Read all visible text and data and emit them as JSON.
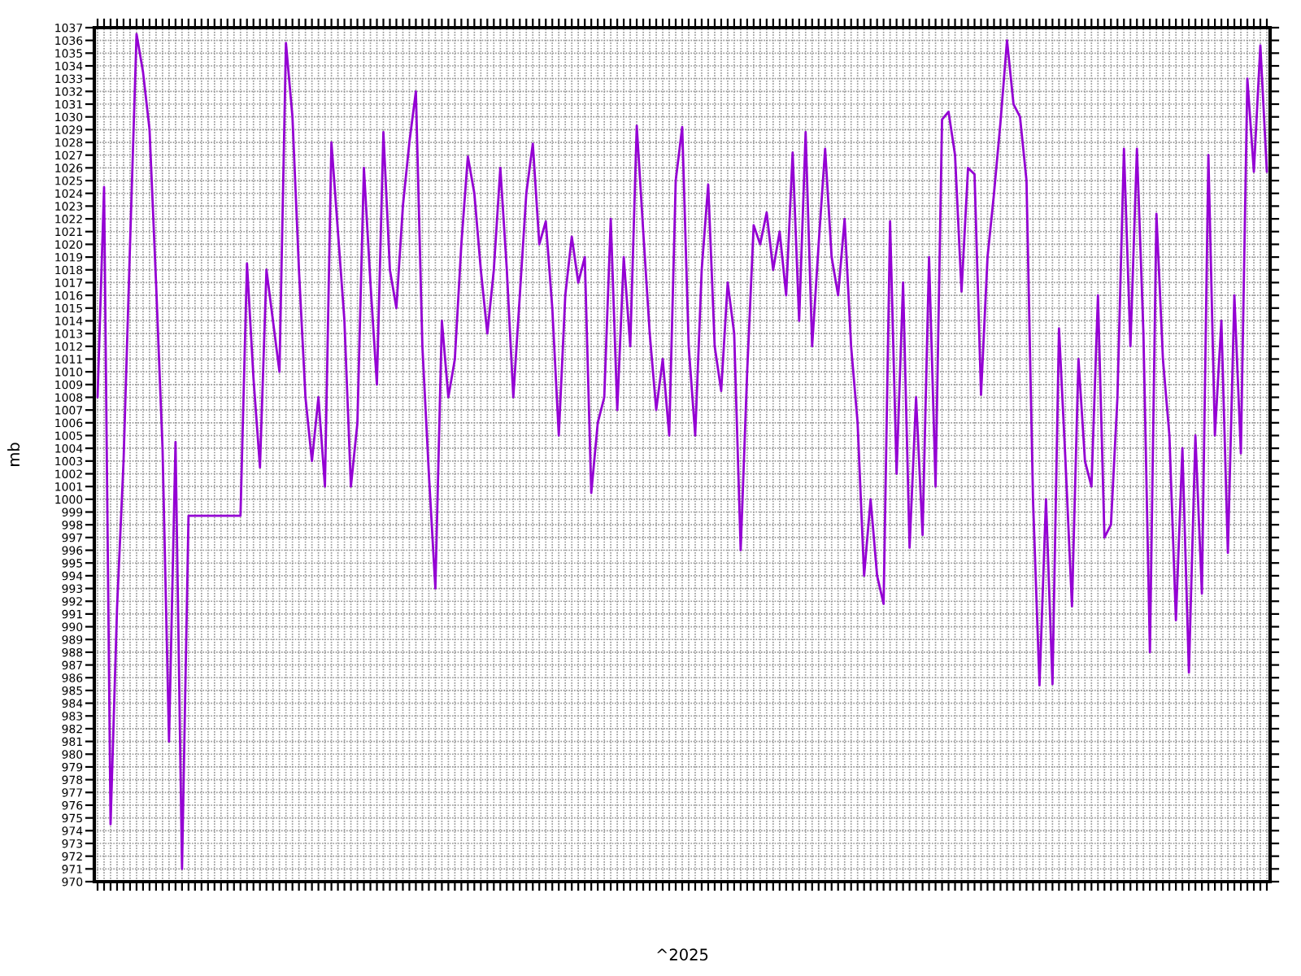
{
  "chart_data": {
    "type": "line",
    "xlabel": "^2025",
    "ylabel": "mb",
    "color": "#9400d3",
    "grid": true,
    "ylim": [
      970,
      1037
    ],
    "yticks": [
      970,
      971,
      972,
      973,
      974,
      975,
      976,
      977,
      978,
      979,
      980,
      981,
      982,
      983,
      984,
      985,
      986,
      987,
      988,
      989,
      990,
      991,
      992,
      993,
      994,
      995,
      996,
      997,
      998,
      999,
      1000,
      1001,
      1002,
      1003,
      1004,
      1005,
      1006,
      1007,
      1008,
      1009,
      1010,
      1011,
      1012,
      1013,
      1014,
      1015,
      1016,
      1017,
      1018,
      1019,
      1020,
      1021,
      1022,
      1023,
      1024,
      1025,
      1026,
      1027,
      1028,
      1029,
      1030,
      1031,
      1032,
      1033,
      1034,
      1035,
      1036,
      1037
    ],
    "categories": [
      null,
      null,
      null,
      null,
      null,
      null,
      null,
      null,
      null,
      null,
      null,
      null,
      null,
      null,
      null,
      null,
      null,
      null,
      null,
      null,
      null,
      null,
      null,
      null,
      null,
      null,
      null,
      null,
      null,
      null,
      null,
      null,
      null,
      null,
      null,
      null,
      null,
      null,
      null,
      null,
      null,
      null,
      null,
      null,
      null,
      null,
      null,
      null,
      null,
      null,
      null,
      null,
      null,
      null,
      null,
      null,
      null,
      null,
      null,
      null,
      null,
      null,
      null,
      null,
      null,
      null,
      null,
      null,
      null,
      null,
      null,
      null,
      null,
      null,
      null,
      null,
      null,
      null,
      null,
      null,
      null,
      null,
      null,
      null,
      null,
      null,
      null,
      null,
      null,
      null,
      null,
      null,
      null,
      null,
      null,
      null,
      null,
      null,
      null,
      null,
      null,
      null,
      null,
      null,
      null,
      null,
      null,
      null,
      null,
      null,
      null,
      null,
      null,
      null,
      null,
      null,
      null,
      null,
      null,
      null,
      null,
      null,
      null,
      null,
      null,
      null,
      null,
      null,
      null,
      null,
      null,
      null,
      null,
      null,
      null,
      null,
      null,
      null,
      null,
      null,
      null,
      null,
      null,
      null,
      null,
      null,
      null,
      null,
      null,
      null,
      null,
      null,
      null,
      null,
      null,
      null,
      null,
      null,
      null,
      null,
      null,
      null,
      null,
      null,
      null,
      null,
      null,
      null,
      null,
      null,
      null,
      null,
      null,
      null,
      null,
      null,
      null,
      null,
      null,
      null,
      null
    ],
    "values": [
      1008,
      1024.5,
      974.5,
      991.5,
      1003,
      1020,
      1036.5,
      1033.5,
      1029,
      1017,
      1004,
      981,
      1004.5,
      971,
      998.7,
      998.7,
      998.7,
      998.7,
      998.7,
      998.7,
      998.7,
      998.7,
      998.7,
      1018.5,
      1009.5,
      1002.5,
      1018,
      1014,
      1010,
      1035.8,
      1030,
      1018,
      1008,
      1003,
      1008,
      1001,
      1028,
      1021,
      1014,
      1001,
      1006,
      1026,
      1017,
      1009,
      1028.8,
      1018,
      1015,
      1023,
      1028,
      1032,
      1012,
      1002,
      993,
      1014,
      1008,
      1011,
      1020,
      1026.9,
      1024,
      1018,
      1013,
      1018,
      1026,
      1018,
      1008,
      1016,
      1024,
      1027.9,
      1020,
      1021.8,
      1015,
      1005,
      1016,
      1020.6,
      1017,
      1019,
      1000.5,
      1006,
      1008,
      1022,
      1007,
      1019,
      1012,
      1029.3,
      1021,
      1013,
      1007,
      1011,
      1005,
      1025,
      1029.2,
      1012,
      1005,
      1018,
      1024.7,
      1012,
      1008.5,
      1017,
      1013,
      996,
      1010,
      1021.5,
      1020,
      1022.5,
      1018,
      1021,
      1016,
      1027.2,
      1014,
      1028.8,
      1012,
      1020,
      1027.5,
      1019,
      1016,
      1022,
      1012,
      1006,
      994,
      1000,
      994,
      991.8,
      1021.8,
      1002,
      1017,
      996.2,
      1008,
      997.2,
      1019,
      1001,
      1029.8,
      1030.4,
      1027,
      1016.3,
      1026,
      1025.5,
      1008.2,
      1019,
      1024,
      1029.6,
      1036,
      1031,
      1030,
      1025,
      1000,
      985.4,
      1000,
      985.5,
      1013.4,
      1003,
      991.6,
      1011,
      1003,
      1001,
      1016,
      997,
      998,
      1008,
      1027.5,
      1012,
      1027.5,
      1013,
      988,
      1022.4,
      1011,
      1005,
      990.5,
      1004,
      986.4,
      1005,
      992.6,
      1027,
      1005,
      1014,
      995.8,
      1016,
      1003.6,
      1033,
      1025.7,
      1035.6,
      1025.7
    ]
  }
}
